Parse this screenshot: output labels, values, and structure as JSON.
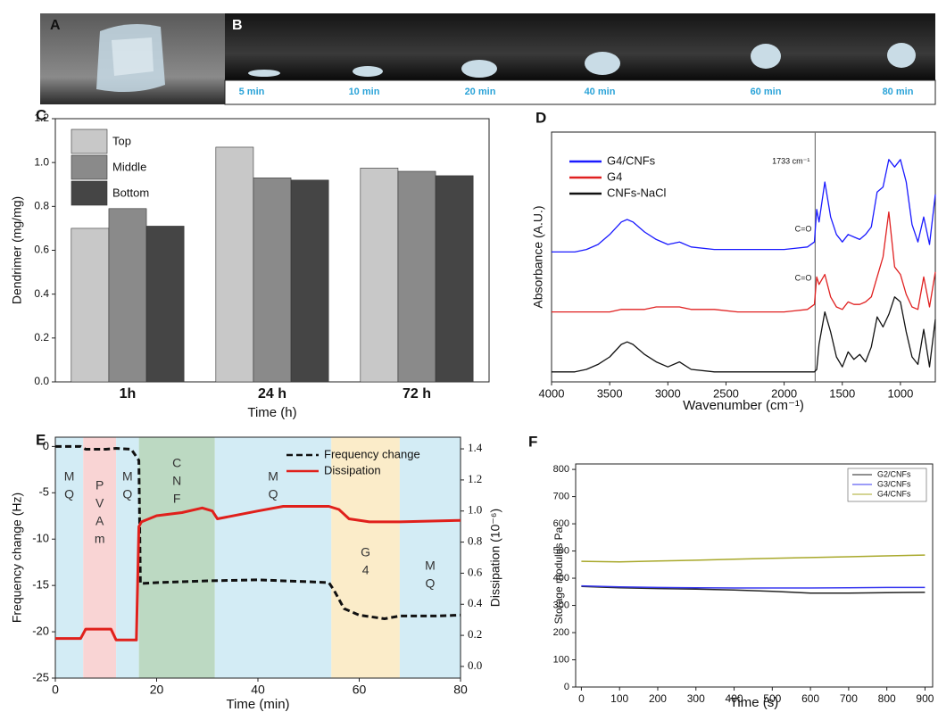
{
  "photos": {
    "A": {
      "label": "A"
    },
    "B": {
      "label": "B",
      "times": [
        "5 min",
        "10 min",
        "20 min",
        "40 min",
        "60 min",
        "80 min"
      ]
    }
  },
  "chart_data": [
    {
      "type": "bar",
      "panel": "C",
      "x_label": "Time (h)",
      "y_label": "Dendrimer (mg/mg)",
      "categories": [
        "1h",
        "24 h",
        "72 h"
      ],
      "series": [
        {
          "name": "Top",
          "color": "#c8c8c8",
          "values": [
            0.7,
            1.07,
            0.975
          ]
        },
        {
          "name": "Middle",
          "color": "#8a8a8a",
          "values": [
            0.79,
            0.93,
            0.96
          ]
        },
        {
          "name": "Bottom",
          "color": "#454545",
          "values": [
            0.71,
            0.92,
            0.94
          ]
        }
      ],
      "ylim": [
        0,
        1.2
      ],
      "yticks": [
        {
          "value": 0,
          "label": "0.0"
        },
        0.2,
        0.4,
        0.6,
        0.8,
        {
          "value": 1,
          "label": "1.0"
        },
        1.2
      ],
      "legend": "upper left"
    },
    {
      "type": "line",
      "panel": "D",
      "x_label": "Wavenumber (cm⁻¹)",
      "y_label": "Absorbance (A.U.)",
      "x": [
        4000,
        3800,
        3700,
        3600,
        3500,
        3400,
        3350,
        3300,
        3200,
        3100,
        3000,
        2900,
        2800,
        2600,
        2400,
        2200,
        2000,
        1800,
        1740,
        1720,
        1700,
        1650,
        1600,
        1550,
        1500,
        1450,
        1400,
        1350,
        1300,
        1250,
        1200,
        1150,
        1100,
        1050,
        1000,
        950,
        900,
        850,
        800,
        750,
        700
      ],
      "series": [
        {
          "name": "G4/CNFs",
          "color": "#1a1aff",
          "values": [
            5.2,
            5.2,
            5.3,
            5.5,
            5.9,
            6.4,
            6.5,
            6.4,
            6.0,
            5.7,
            5.5,
            5.6,
            5.4,
            5.3,
            5.3,
            5.3,
            5.3,
            5.4,
            5.6,
            6.9,
            6.4,
            8.0,
            6.6,
            5.9,
            5.6,
            5.9,
            5.8,
            5.7,
            5.9,
            6.2,
            7.6,
            7.8,
            8.9,
            8.6,
            8.9,
            8.0,
            6.3,
            5.6,
            6.6,
            5.5,
            7.5
          ]
        },
        {
          "name": "G4",
          "color": "#e02020",
          "values": [
            2.8,
            2.8,
            2.8,
            2.8,
            2.8,
            2.9,
            2.9,
            2.9,
            2.9,
            3.0,
            3.0,
            3.0,
            2.9,
            2.9,
            2.8,
            2.8,
            2.8,
            2.9,
            3.1,
            4.2,
            3.9,
            4.3,
            3.4,
            3.0,
            2.9,
            3.2,
            3.1,
            3.1,
            3.2,
            3.4,
            4.2,
            5.0,
            6.8,
            4.6,
            4.3,
            3.5,
            3.0,
            2.9,
            4.2,
            3.0,
            4.4
          ]
        },
        {
          "name": "CNFs-NaCl",
          "color": "#111111",
          "values": [
            0.4,
            0.4,
            0.5,
            0.7,
            1.0,
            1.5,
            1.6,
            1.5,
            1.1,
            0.8,
            0.6,
            0.8,
            0.5,
            0.4,
            0.4,
            0.4,
            0.4,
            0.4,
            0.4,
            0.5,
            1.5,
            2.8,
            2.0,
            1.0,
            0.6,
            1.2,
            0.9,
            1.1,
            0.8,
            1.4,
            2.6,
            2.2,
            2.7,
            3.4,
            3.2,
            2.0,
            1.0,
            0.7,
            2.1,
            0.6,
            2.5
          ]
        }
      ],
      "xlim": [
        4000,
        700
      ],
      "xticks": [
        4000,
        3500,
        3000,
        2500,
        2000,
        1500,
        1000
      ],
      "ylim": [
        0,
        10
      ],
      "vline": 1733,
      "annotations": [
        "1733 cm⁻¹",
        "C=O",
        "C=O"
      ],
      "legend": "upper left"
    },
    {
      "type": "line",
      "panel": "E",
      "x_label": "Time (min)",
      "y_label": "Frequency change (Hz)",
      "y2_label": "Dissipation (10⁻⁶)",
      "regions": [
        {
          "start": 0,
          "end": 5.5,
          "color": "#d3ecf5",
          "label": [
            "M",
            "Q"
          ]
        },
        {
          "start": 5.5,
          "end": 12,
          "color": "#f9d4d4",
          "label": [
            "P",
            "V",
            "A",
            "m"
          ]
        },
        {
          "start": 12,
          "end": 16.5,
          "color": "#d3ecf5",
          "label": [
            "M",
            "Q"
          ]
        },
        {
          "start": 16.5,
          "end": 31.5,
          "color": "#bcd9c2",
          "label": [
            "C",
            "N",
            "F"
          ]
        },
        {
          "start": 31.5,
          "end": 54.5,
          "color": "#d3ecf5",
          "label": [
            "M",
            "Q"
          ]
        },
        {
          "start": 54.5,
          "end": 68,
          "color": "#fbecc9",
          "label": [
            "G",
            "4"
          ]
        },
        {
          "start": 68,
          "end": 80,
          "color": "#d3ecf5",
          "label": [
            "M",
            "Q"
          ]
        }
      ],
      "series": [
        {
          "name": "Frequency change",
          "color": "#111111",
          "style": "dashed",
          "x": [
            0,
            5,
            6,
            10,
            12,
            15,
            16.5,
            16.8,
            20,
            30,
            40,
            50,
            54,
            55,
            57,
            60,
            65,
            68,
            75,
            80
          ],
          "values": [
            0,
            0,
            -0.3,
            -0.3,
            -0.2,
            -0.3,
            -1.5,
            -14.8,
            -14.7,
            -14.5,
            -14.4,
            -14.6,
            -14.7,
            -15.5,
            -17.5,
            -18.2,
            -18.6,
            -18.3,
            -18.3,
            -18.2
          ]
        },
        {
          "name": "Dissipation",
          "color": "#e0201b",
          "axis": "y2",
          "x": [
            0,
            5,
            6,
            11,
            12,
            16,
            16.5,
            17,
            20,
            25,
            29,
            31,
            32,
            40,
            45,
            54,
            56,
            58,
            62,
            68,
            80
          ],
          "values": [
            0.18,
            0.18,
            0.24,
            0.24,
            0.17,
            0.17,
            0.9,
            0.93,
            0.97,
            0.99,
            1.02,
            1.0,
            0.95,
            1.0,
            1.03,
            1.03,
            1.01,
            0.95,
            0.93,
            0.93,
            0.94
          ]
        }
      ],
      "xlim": [
        0,
        80
      ],
      "xticks": [
        0,
        20,
        40,
        60,
        80
      ],
      "ylim": [
        -25,
        1
      ],
      "yticks": [
        0,
        -5,
        -10,
        -15,
        -20,
        -25
      ],
      "y2lim": [
        -0.075,
        1.475
      ],
      "y2ticks": [
        {
          "value": 0,
          "label": "0.0"
        },
        0.2,
        0.4,
        0.6,
        0.8,
        {
          "value": 1,
          "label": "1.0"
        },
        1.2,
        1.4
      ],
      "legend": "upper right"
    },
    {
      "type": "line",
      "panel": "F",
      "x_label": "Time (s)",
      "y_label": "Storage modulus Pa",
      "x": [
        0,
        100,
        200,
        300,
        400,
        500,
        600,
        700,
        800,
        900
      ],
      "series": [
        {
          "name": "G2/CNFs",
          "color": "#222222",
          "values": [
            370,
            365,
            362,
            360,
            357,
            352,
            345,
            345,
            347,
            348
          ]
        },
        {
          "name": "G3/CNFs",
          "color": "#3a3af0",
          "values": [
            372,
            368,
            366,
            365,
            364,
            364,
            364,
            365,
            366,
            366
          ]
        },
        {
          "name": "G4/CNFs",
          "color": "#a8a82a",
          "values": [
            462,
            460,
            463,
            466,
            470,
            473,
            476,
            479,
            482,
            485
          ]
        }
      ],
      "xlim": [
        -15,
        920
      ],
      "xticks": [
        0,
        100,
        200,
        300,
        400,
        500,
        600,
        700,
        800,
        900
      ],
      "ylim": [
        0,
        820
      ],
      "yticks": [
        0,
        100,
        200,
        300,
        400,
        500,
        600,
        700,
        800
      ],
      "legend": "upper right"
    }
  ]
}
